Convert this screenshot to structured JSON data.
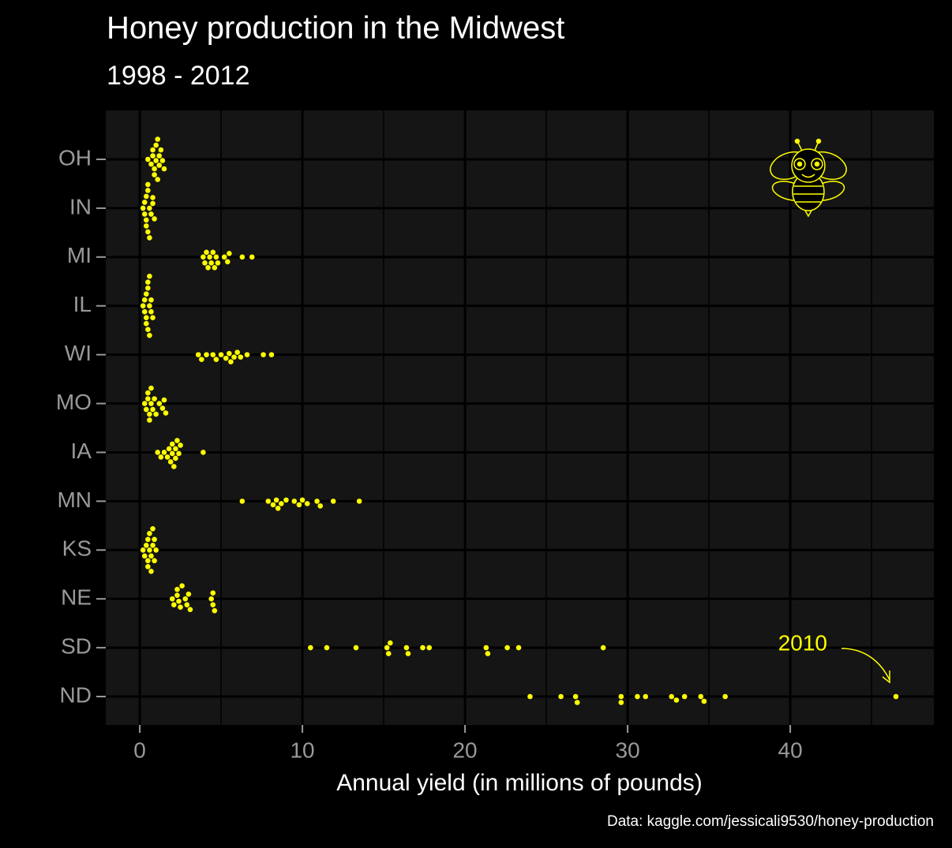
{
  "chart_data": {
    "type": "beeswarm",
    "title": "Honey production in the Midwest",
    "subtitle": "1998 - 2012",
    "x_label": "Annual yield (in millions of pounds)",
    "caption": "Data: kaggle.com/jessicali9530/honey-production",
    "color": "#ffff00",
    "categories": [
      "OH",
      "IN",
      "MI",
      "IL",
      "WI",
      "MO",
      "IA",
      "MN",
      "KS",
      "NE",
      "SD",
      "ND"
    ],
    "values": [
      [
        0.5,
        0.7,
        0.8,
        0.9,
        1.0,
        1.0,
        1.1,
        1.2,
        1.3,
        1.4,
        1.5,
        1.2,
        0.9,
        0.8,
        1.1
      ],
      [
        0.2,
        0.3,
        0.3,
        0.4,
        0.4,
        0.5,
        0.5,
        0.6,
        0.6,
        0.7,
        0.8,
        0.8,
        0.9,
        0.5,
        0.4
      ],
      [
        3.9,
        4.0,
        4.1,
        4.2,
        4.3,
        4.4,
        4.5,
        4.6,
        4.7,
        4.8,
        5.2,
        5.4,
        5.5,
        6.3,
        6.9
      ],
      [
        0.2,
        0.3,
        0.3,
        0.4,
        0.4,
        0.5,
        0.5,
        0.5,
        0.6,
        0.6,
        0.7,
        0.7,
        0.8,
        0.6,
        0.4
      ],
      [
        3.6,
        3.8,
        4.1,
        4.5,
        4.7,
        5.0,
        5.3,
        5.5,
        5.6,
        5.8,
        6.0,
        6.2,
        6.6,
        7.6,
        8.1
      ],
      [
        0.3,
        0.4,
        0.5,
        0.6,
        0.6,
        0.7,
        0.7,
        0.8,
        0.9,
        1.0,
        1.2,
        1.4,
        1.5,
        1.6,
        0.5
      ],
      [
        1.1,
        1.3,
        1.5,
        1.7,
        1.8,
        1.9,
        2.0,
        2.1,
        2.2,
        2.3,
        2.4,
        2.5,
        2.2,
        2.0,
        3.9
      ],
      [
        6.3,
        7.9,
        8.2,
        8.4,
        8.5,
        8.7,
        9.0,
        9.5,
        9.8,
        10.0,
        10.3,
        10.9,
        11.1,
        11.9,
        13.5
      ],
      [
        0.2,
        0.3,
        0.4,
        0.5,
        0.5,
        0.6,
        0.6,
        0.7,
        0.7,
        0.8,
        0.8,
        0.9,
        0.9,
        1.0,
        0.5
      ],
      [
        2.0,
        2.1,
        2.3,
        2.3,
        2.4,
        2.5,
        2.6,
        2.8,
        2.9,
        3.0,
        3.1,
        4.4,
        4.5,
        4.5,
        4.6
      ],
      [
        10.5,
        11.5,
        13.3,
        15.2,
        15.3,
        15.4,
        16.4,
        16.5,
        17.4,
        17.8,
        21.3,
        21.4,
        22.6,
        23.3,
        28.5
      ],
      [
        24.0,
        25.9,
        26.8,
        26.9,
        29.6,
        29.6,
        30.6,
        31.1,
        32.7,
        33.0,
        33.5,
        34.5,
        34.7,
        36.0,
        46.5
      ]
    ],
    "xlim": [
      -2.09,
      48.83
    ],
    "xticks": [
      0,
      10,
      20,
      30,
      40
    ],
    "minor_xticks": [
      5,
      15,
      25,
      35,
      45
    ],
    "grid": true,
    "annotation": "2010"
  }
}
